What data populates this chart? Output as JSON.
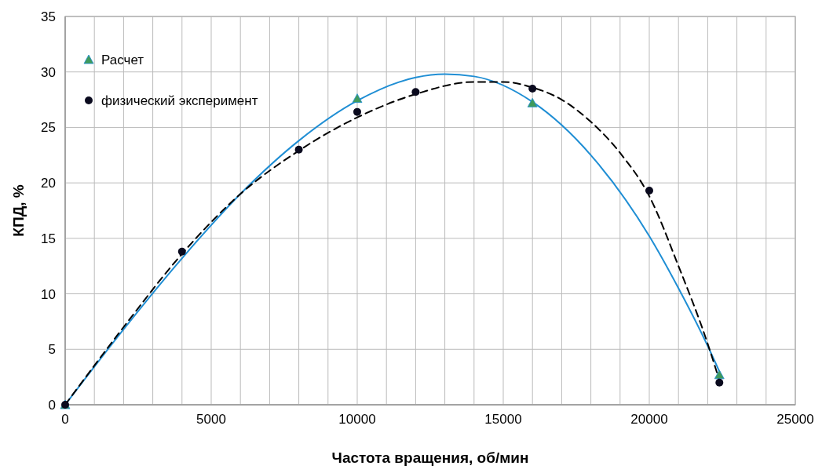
{
  "chart_data": {
    "type": "scatter",
    "xlabel": "Частота вращения, об/мин",
    "ylabel": "КПД, %",
    "xlim": [
      0,
      25000
    ],
    "ylim": [
      0,
      35
    ],
    "xticks": [
      0,
      {
        "value": 1000,
        "label": null
      },
      {
        "value": 2000,
        "label": null
      },
      {
        "value": 3000,
        "label": null
      },
      {
        "value": 4000,
        "label": null
      },
      5000,
      {
        "value": 6000,
        "label": null
      },
      {
        "value": 7000,
        "label": null
      },
      {
        "value": 8000,
        "label": null
      },
      {
        "value": 9000,
        "label": null
      },
      10000,
      {
        "value": 11000,
        "label": null
      },
      {
        "value": 12000,
        "label": null
      },
      {
        "value": 13000,
        "label": null
      },
      {
        "value": 14000,
        "label": null
      },
      15000,
      {
        "value": 16000,
        "label": null
      },
      {
        "value": 17000,
        "label": null
      },
      {
        "value": 18000,
        "label": null
      },
      {
        "value": 19000,
        "label": null
      },
      20000,
      {
        "value": 21000,
        "label": null
      },
      {
        "value": 22000,
        "label": null
      },
      {
        "value": 23000,
        "label": null
      },
      {
        "value": 24000,
        "label": null
      },
      25000
    ],
    "yticks": [
      0,
      5,
      10,
      15,
      20,
      25,
      30,
      35
    ],
    "grid": true,
    "legend": "top left",
    "series": [
      {
        "type": "line",
        "color": "#1f8ed4",
        "line_style": "solid",
        "x": [
          0,
          2000,
          4000,
          6000,
          8000,
          10000,
          12000,
          13000,
          14000,
          16000,
          18000,
          20000,
          21000,
          22000,
          22400
        ],
        "values": [
          0,
          6.8,
          13.2,
          19,
          23.8,
          27.4,
          29.5,
          29.8,
          29.6,
          27.3,
          22.5,
          15.2,
          10.5,
          5.3,
          3
        ]
      },
      {
        "type": "line",
        "color": "#000000",
        "line_style": "dashed",
        "x": [
          0,
          2000,
          4000,
          6000,
          8000,
          10000,
          12000,
          14000,
          15000,
          16000,
          17000,
          18000,
          19000,
          20000,
          21000,
          22000,
          22400
        ],
        "values": [
          0,
          7,
          13.6,
          19,
          22.9,
          25.9,
          28,
          29.1,
          29.1,
          28.6,
          27.5,
          25.5,
          22.7,
          18.8,
          12.5,
          5.5,
          2.2
        ]
      },
      {
        "name": "Расчет",
        "color": "#3f9a5c",
        "marker": "triangle",
        "x": [
          0,
          10000,
          16000,
          22400
        ],
        "values": [
          0,
          27.6,
          27.2,
          2.7
        ]
      },
      {
        "name": "физический эксперимент",
        "color": "#0a0a1e",
        "marker": "circle",
        "x": [
          0,
          4000,
          8000,
          10000,
          12000,
          16000,
          20000,
          22400
        ],
        "values": [
          0,
          13.8,
          23,
          26.4,
          28.2,
          28.5,
          19.3,
          2
        ]
      }
    ]
  }
}
